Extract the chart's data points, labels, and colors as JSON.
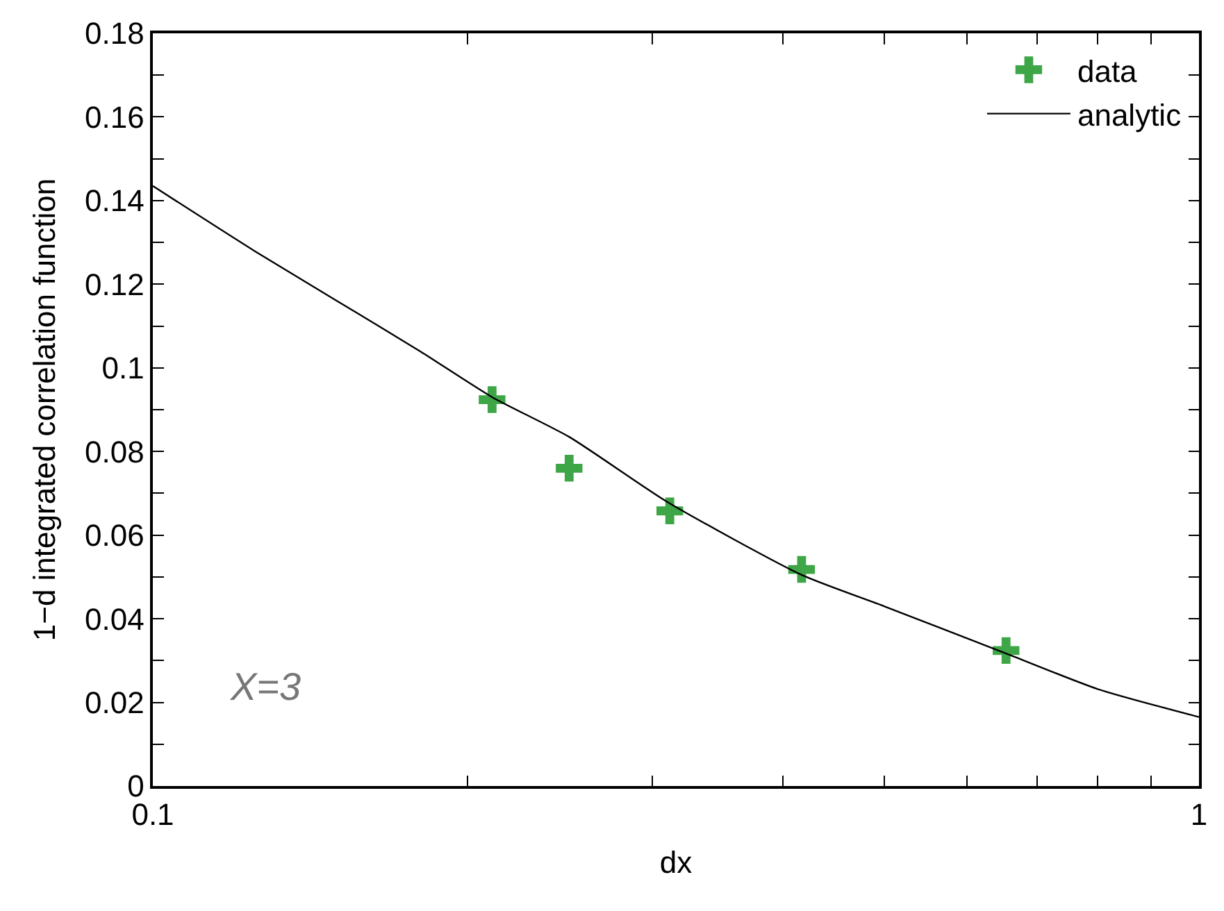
{
  "chart_data": {
    "type": "scatter",
    "xlabel": "dx",
    "ylabel": "1−d integrated correlation function",
    "log": "x",
    "legend": "top right",
    "xlim": [
      0.1,
      1
    ],
    "xticks": [
      0.1,
      {
        "value": 0.2,
        "label": null
      },
      {
        "value": 0.3,
        "label": null
      },
      {
        "value": 0.4,
        "label": null
      },
      {
        "value": 0.5,
        "label": null
      },
      {
        "value": 0.6,
        "label": null
      },
      {
        "value": 0.7,
        "label": null
      },
      {
        "value": 0.8,
        "label": null
      },
      {
        "value": 0.9,
        "label": null
      },
      1
    ],
    "ylim": [
      0,
      0.18
    ],
    "yticks": [
      0,
      {
        "value": 0.01,
        "label": null
      },
      0.02,
      {
        "value": 0.03,
        "label": null
      },
      0.04,
      {
        "value": 0.05,
        "label": null
      },
      0.06,
      {
        "value": 0.07,
        "label": null
      },
      0.08,
      {
        "value": 0.09,
        "label": null
      },
      0.1,
      {
        "value": 0.11,
        "label": null
      },
      0.12,
      {
        "value": 0.13,
        "label": null
      },
      0.14,
      {
        "value": 0.15,
        "label": null
      },
      0.16,
      {
        "value": 0.17,
        "label": null
      },
      0.18
    ],
    "series": [
      {
        "name": "data",
        "marker": "cross",
        "color": "#3fa648",
        "x": [
          0.211,
          0.25,
          0.312,
          0.417,
          0.654
        ],
        "values": [
          0.0924,
          0.076,
          0.0658,
          0.0518,
          0.0324
        ]
      },
      {
        "name": "analytic",
        "type": "line",
        "marker": "none",
        "line_style": "solid",
        "color": "#000000",
        "x": [
          0.1,
          0.125,
          0.15,
          0.18,
          0.211,
          0.25,
          0.31,
          0.417,
          0.5,
          0.654,
          0.8,
          1.0
        ],
        "values": [
          0.1435,
          0.128,
          0.116,
          0.104,
          0.093,
          0.0835,
          0.068,
          0.0505,
          0.043,
          0.0317,
          0.0232,
          0.0165
        ]
      }
    ],
    "annotations": [
      "X=3"
    ]
  }
}
